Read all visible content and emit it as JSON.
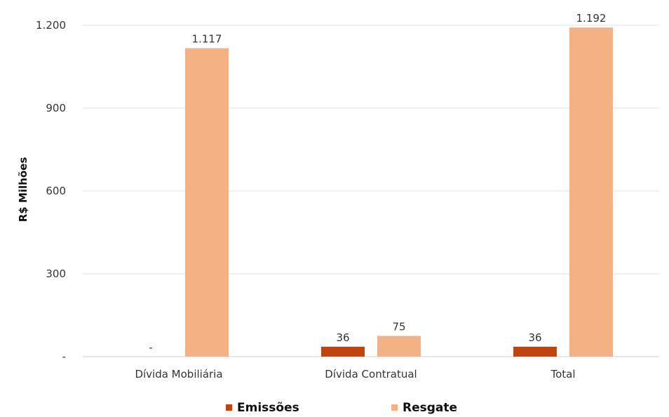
{
  "chart_data": {
    "type": "bar",
    "categories": [
      "Dívida Mobiliária",
      "Dívida Contratual",
      "Total"
    ],
    "series": [
      {
        "name": "Emissões",
        "values": [
          0,
          36,
          36
        ],
        "labels": [
          "-",
          "36",
          "36"
        ],
        "color": "#C0440E"
      },
      {
        "name": "Resgate",
        "values": [
          1117,
          75,
          1192
        ],
        "labels": [
          "1.117",
          "75",
          "1.192"
        ],
        "color": "#F4B183"
      }
    ],
    "ylabel": "R$ Milhões",
    "ylim": [
      0,
      1200
    ],
    "yticks": [
      0,
      300,
      600,
      900,
      1200
    ],
    "ytick_labels": [
      "-",
      "300",
      "600",
      "900",
      "1.200"
    ],
    "grid": true,
    "legend_position": "bottom"
  }
}
